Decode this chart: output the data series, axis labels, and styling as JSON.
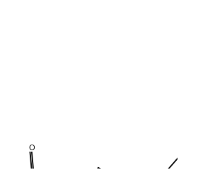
{
  "background_color": "#ffffff",
  "line_color": "#1a1a1a",
  "line_width": 1.4,
  "font_size": 8.0,
  "figsize": [
    2.8,
    2.68
  ],
  "dpi": 100,
  "xlim": [
    -2.1,
    2.9
  ],
  "ylim": [
    -2.6,
    2.2
  ]
}
